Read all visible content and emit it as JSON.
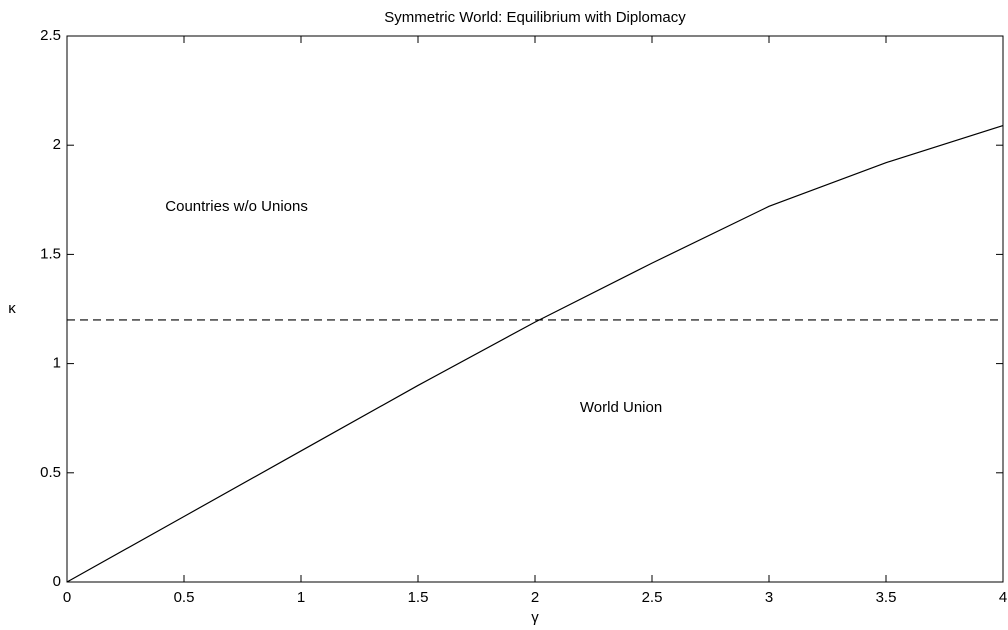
{
  "chart_data": {
    "type": "line",
    "title": "Symmetric World: Equilibrium with Diplomacy",
    "xlabel": "γ",
    "ylabel": "κ",
    "series": [
      {
        "x": [
          0,
          0.5,
          1,
          1.5,
          2,
          2.5,
          3,
          3.5,
          4
        ],
        "values": [
          0,
          0.3,
          0.6,
          0.9,
          1.19,
          1.46,
          1.72,
          1.92,
          2.09
        ],
        "color": "#000000",
        "dash": false
      },
      {
        "x": [
          0,
          4
        ],
        "values": [
          1.2,
          1.2
        ],
        "color": "#000000",
        "dash": true
      }
    ],
    "annotations": [
      "Countries w/o Unions",
      "World Union"
    ],
    "xlim": [
      0,
      4
    ],
    "xticks": [
      0,
      0.5,
      1,
      1.5,
      2,
      2.5,
      3,
      3.5,
      4
    ],
    "ylim": [
      0,
      2.5
    ],
    "yticks": [
      0,
      0.5,
      1,
      1.5,
      2,
      2.5
    ],
    "grid": false
  }
}
